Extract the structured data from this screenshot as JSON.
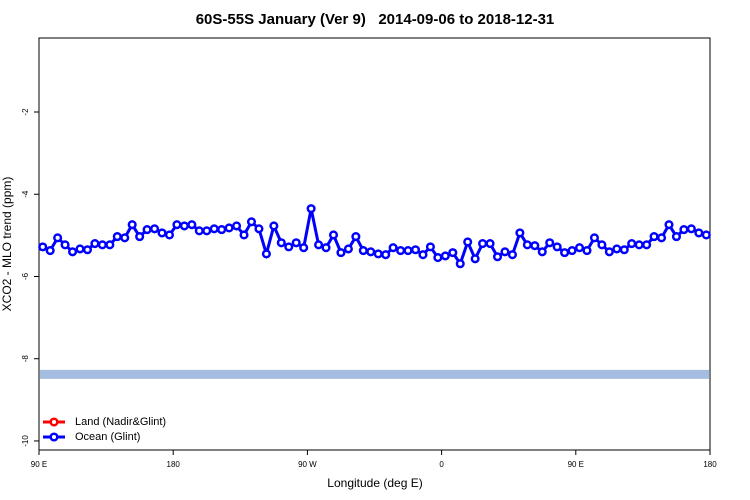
{
  "chart_data": {
    "type": "line",
    "title": "60S-55S January (Ver 9)   2014-09-06 to 2018-12-31",
    "xlabel": "Longitude (deg E)",
    "ylabel": "XCO2 - MLO trend (ppm)",
    "xlim": [
      90,
      540
    ],
    "xticks": [
      {
        "value": 90,
        "label": "90 E"
      },
      {
        "value": 180,
        "label": "180"
      },
      {
        "value": 270,
        "label": "90 W"
      },
      {
        "value": 360,
        "label": "0"
      },
      {
        "value": 450,
        "label": "90 E"
      },
      {
        "value": 540,
        "label": "180"
      }
    ],
    "ylim": [
      -10.22,
      -0.2
    ],
    "yticks": [
      -10,
      -8,
      -6,
      -4,
      -2
    ],
    "legend": "bottom-left",
    "band": {
      "value": -8.38,
      "color": "#a5bde0"
    },
    "series": [
      {
        "name": "Land (Nadir&Glint)",
        "color": "#ff0000",
        "x": [],
        "values": []
      },
      {
        "name": "Ocean (Glint)",
        "color": "#0000ff",
        "x": [
          92.5,
          97.5,
          102.5,
          107.5,
          112.5,
          117.5,
          122.5,
          127.5,
          132.5,
          137.5,
          142.5,
          147.5,
          152.5,
          157.5,
          162.5,
          167.5,
          172.5,
          177.5,
          182.5,
          187.5,
          192.5,
          197.5,
          202.5,
          207.5,
          212.5,
          217.5,
          222.5,
          227.5,
          232.5,
          237.5,
          242.5,
          247.5,
          252.5,
          257.5,
          262.5,
          267.5,
          272.5,
          277.5,
          282.5,
          287.5,
          292.5,
          297.5,
          302.5,
          307.5,
          312.5,
          317.5,
          322.5,
          327.5,
          332.5,
          337.5,
          342.5,
          347.5,
          352.5,
          357.5,
          362.5,
          367.5,
          372.5,
          377.5,
          382.5,
          387.5,
          392.5,
          397.5,
          402.5,
          407.5,
          412.5,
          417.5,
          422.5,
          427.5,
          432.5,
          437.5,
          442.5,
          447.5,
          452.5,
          457.5,
          462.5,
          467.5,
          472.5,
          477.5,
          482.5,
          487.5,
          492.5,
          497.5,
          502.5,
          507.5,
          512.5,
          517.5,
          522.5,
          527.5,
          532.5,
          537.5
        ],
        "values": [
          -5.28,
          -5.37,
          -5.06,
          -5.23,
          -5.4,
          -5.33,
          -5.35,
          -5.2,
          -5.23,
          -5.23,
          -5.03,
          -5.06,
          -4.74,
          -5.03,
          -4.86,
          -4.84,
          -4.94,
          -4.99,
          -4.74,
          -4.77,
          -4.74,
          -4.89,
          -4.89,
          -4.84,
          -4.86,
          -4.82,
          -4.77,
          -4.99,
          -4.67,
          -4.84,
          -5.45,
          -4.77,
          -5.18,
          -5.28,
          -5.18,
          -5.3,
          -4.35,
          -5.23,
          -5.3,
          -4.99,
          -5.42,
          -5.33,
          -5.03,
          -5.37,
          -5.4,
          -5.45,
          -5.47,
          -5.3,
          -5.37,
          -5.37,
          -5.35,
          -5.47,
          -5.28,
          -5.54,
          -5.5,
          -5.42,
          -5.69,
          -5.16,
          -5.57,
          -5.2,
          -5.2,
          -5.52,
          -5.4,
          -5.47,
          -4.94,
          -5.23,
          -5.25,
          -5.4,
          -5.18,
          -5.28,
          -5.42,
          -5.37,
          -5.3,
          -5.37,
          -5.06,
          -5.23,
          -5.4,
          -5.33,
          -5.35,
          -5.2,
          -5.23,
          -5.23,
          -5.03,
          -5.06,
          -4.74,
          -5.03,
          -4.86,
          -4.84,
          -4.94,
          -4.99
        ]
      }
    ]
  }
}
